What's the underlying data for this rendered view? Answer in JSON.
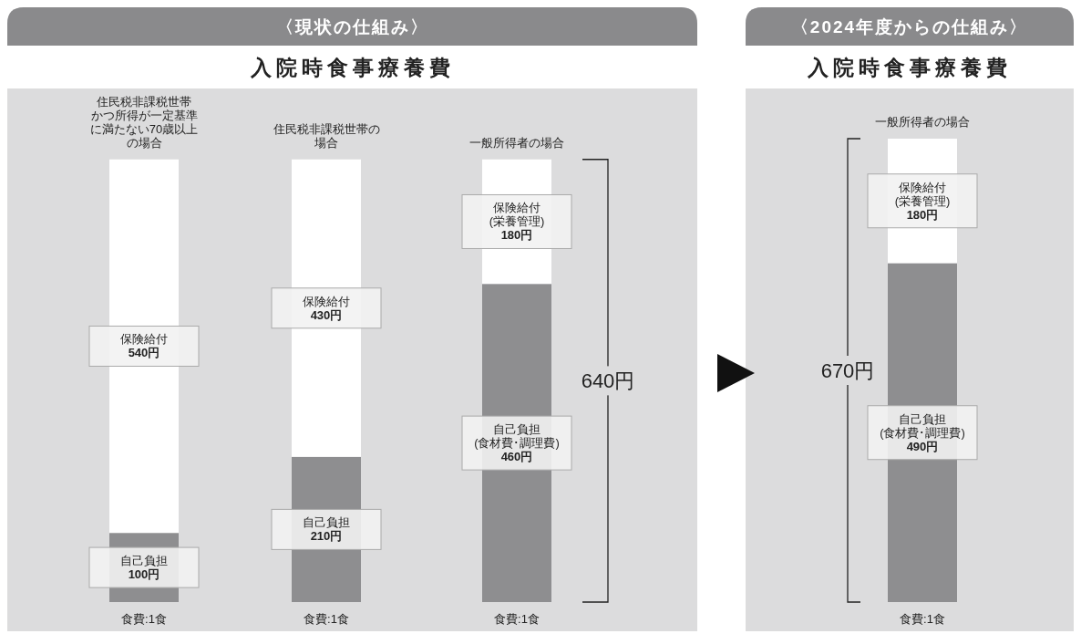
{
  "chart_data": [
    {
      "type": "bar",
      "stacked": true,
      "title": "〈現状の仕組み〉",
      "subtitle": "入院時食事療養費",
      "xlabel": "食費:1食",
      "categories": [
        "住民税非課税世帯かつ所得が一定基準に満たない70歳以上の場合",
        "住民税非課税世帯の場合",
        "一般所得者の場合"
      ],
      "series": [
        {
          "color": "#8e8e90",
          "values": [
            100,
            210,
            460
          ],
          "value_labels": [
            "自己負担\n100円",
            "自己負担\n210円",
            "自己負担\n(食材費･調理費)\n460円"
          ]
        },
        {
          "color": "#ffffff",
          "values": [
            540,
            430,
            180
          ],
          "value_labels": [
            "保険給付\n540円",
            "保険給付\n430円",
            "保険給付\n(栄養管理)\n180円"
          ]
        }
      ],
      "annotations": [
        "640円"
      ]
    },
    {
      "type": "bar",
      "stacked": true,
      "title": "〈2024年度からの仕組み〉",
      "subtitle": "入院時食事療養費",
      "xlabel": "食費:1食",
      "categories": [
        "一般所得者の場合"
      ],
      "series": [
        {
          "color": "#8e8e90",
          "values": [
            490
          ],
          "value_labels": [
            "自己負担\n(食材費･調理費)\n490円"
          ]
        },
        {
          "color": "#ffffff",
          "values": [
            180
          ],
          "value_labels": [
            "保険給付\n(栄養管理)\n180円"
          ]
        }
      ],
      "annotations": [
        "670円"
      ]
    }
  ]
}
